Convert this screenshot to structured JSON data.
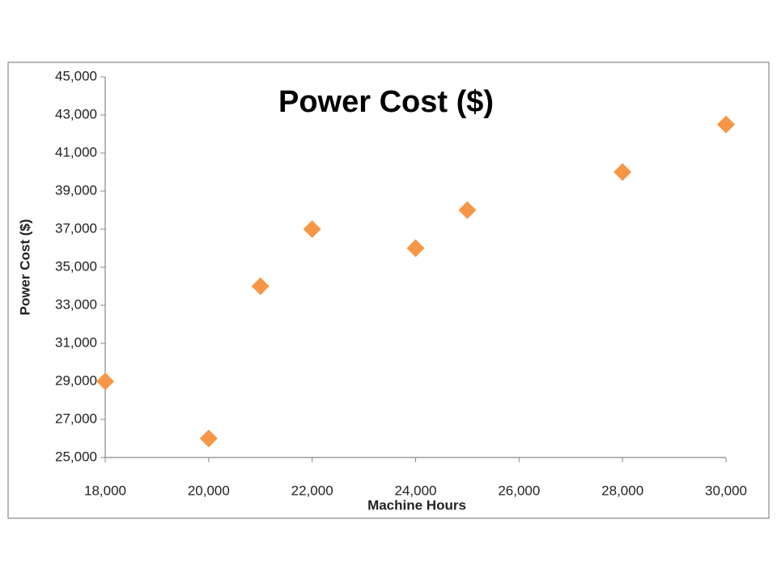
{
  "chart_data": {
    "type": "scatter",
    "title": "Power Cost ($)",
    "x_label": "Machine Hours",
    "y_label": "Power Cost ($)",
    "x": [
      18000,
      20000,
      21000,
      22000,
      24000,
      25000,
      28000,
      30000
    ],
    "series": [
      {
        "name": "Power Cost ($)",
        "color": "#f79646",
        "values": [
          29000,
          26000,
          34000,
          37000,
          36000,
          38000,
          40000,
          42500
        ]
      }
    ],
    "xlim": [
      18000,
      30000
    ],
    "xticks": [
      {
        "value": 18000,
        "label": "18,000"
      },
      {
        "value": 20000,
        "label": "20,000"
      },
      {
        "value": 22000,
        "label": "22,000"
      },
      {
        "value": 24000,
        "label": "24,000"
      },
      {
        "value": 26000,
        "label": "26,000"
      },
      {
        "value": 28000,
        "label": "28,000"
      },
      {
        "value": 30000,
        "label": "30,000"
      }
    ],
    "ylim": [
      25000,
      45000
    ],
    "yticks": [
      {
        "value": 25000,
        "label": "25,000"
      },
      {
        "value": 27000,
        "label": "27,000"
      },
      {
        "value": 29000,
        "label": "29,000"
      },
      {
        "value": 31000,
        "label": "31,000"
      },
      {
        "value": 33000,
        "label": "33,000"
      },
      {
        "value": 35000,
        "label": "35,000"
      },
      {
        "value": 37000,
        "label": "37,000"
      },
      {
        "value": 39000,
        "label": "39,000"
      },
      {
        "value": 41000,
        "label": "41,000"
      },
      {
        "value": 43000,
        "label": "43,000"
      },
      {
        "value": 45000,
        "label": "45,000"
      }
    ],
    "grid": false
  }
}
